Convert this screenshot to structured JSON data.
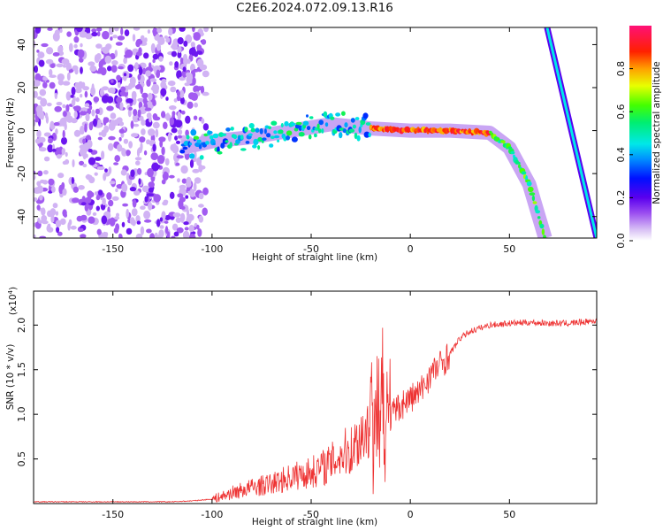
{
  "title": "C2E6.2024.072.09.13.R16",
  "chart_data": [
    {
      "type": "heatmap",
      "name": "spectrogram",
      "xlabel": "Height of straight line (km)",
      "ylabel": "Frequency (Hz)",
      "xlim": [
        -190,
        94
      ],
      "ylim": [
        -50,
        48
      ],
      "xticks": [
        -150,
        -100,
        -50,
        0,
        50
      ],
      "yticks": [
        -40,
        -20,
        0,
        20,
        40
      ],
      "colorbar": {
        "label": "Normalized spectral amplitude",
        "range": [
          0.0,
          1.0
        ],
        "ticks": [
          0.0,
          0.2,
          0.4,
          0.6,
          0.8
        ],
        "tick_labels": [
          "0.0",
          "0.2",
          "0.4",
          "0.6",
          "0.8"
        ]
      },
      "features": [
        {
          "name": "noise-region",
          "x_range": [
            -190,
            -103
          ],
          "y_range": [
            -50,
            48
          ],
          "amplitude": 0.12
        },
        {
          "name": "main-signal",
          "points": [
            [
              -115,
              -8
            ],
            [
              -100,
              -5
            ],
            [
              -80,
              -3
            ],
            [
              -60,
              0
            ],
            [
              -40,
              3
            ],
            [
              -20,
              1
            ],
            [
              0,
              0
            ],
            [
              20,
              0
            ],
            [
              40,
              -1
            ],
            [
              50,
              -8
            ],
            [
              60,
              -25
            ],
            [
              68,
              -50
            ]
          ],
          "amplitude_range": [
            0.3,
            0.95
          ]
        },
        {
          "name": "second-line",
          "points": [
            [
              69,
              48
            ],
            [
              94,
              -50
            ]
          ],
          "amplitude": 0.45
        }
      ]
    },
    {
      "type": "line",
      "name": "snr",
      "xlabel": "Height of straight line (km)",
      "ylabel": "SNR (10 * v/v)",
      "multiplier": "(x10",
      "multiplier_exp": "4",
      "multiplier_close": ")",
      "xlim": [
        -190,
        94
      ],
      "ylim": [
        0,
        2.38
      ],
      "xticks": [
        -150,
        -100,
        -50,
        0,
        50
      ],
      "yticks": [
        0.5,
        1.0,
        1.5,
        2.0
      ],
      "ytick_labels": [
        "0.5",
        "1.0",
        "1.5",
        "2.0"
      ],
      "color": "#ee3333",
      "series": [
        {
          "name": "SNR",
          "x": [
            -190,
            -150,
            -120,
            -110,
            -100,
            -95,
            -90,
            -80,
            -70,
            -60,
            -50,
            -45,
            -40,
            -35,
            -30,
            -25,
            -20,
            -15,
            -12,
            -10,
            -5,
            0,
            5,
            10,
            15,
            20,
            25,
            30,
            40,
            50,
            60,
            70,
            80,
            94
          ],
          "values": [
            0.02,
            0.02,
            0.02,
            0.03,
            0.05,
            0.08,
            0.12,
            0.18,
            0.22,
            0.3,
            0.35,
            0.4,
            0.45,
            0.55,
            0.6,
            0.75,
            0.9,
            0.9,
            0.95,
            0.97,
            1.1,
            1.18,
            1.25,
            1.45,
            1.55,
            1.68,
            1.85,
            1.93,
            2.0,
            2.02,
            2.03,
            2.02,
            2.02,
            2.05
          ]
        }
      ]
    }
  ]
}
